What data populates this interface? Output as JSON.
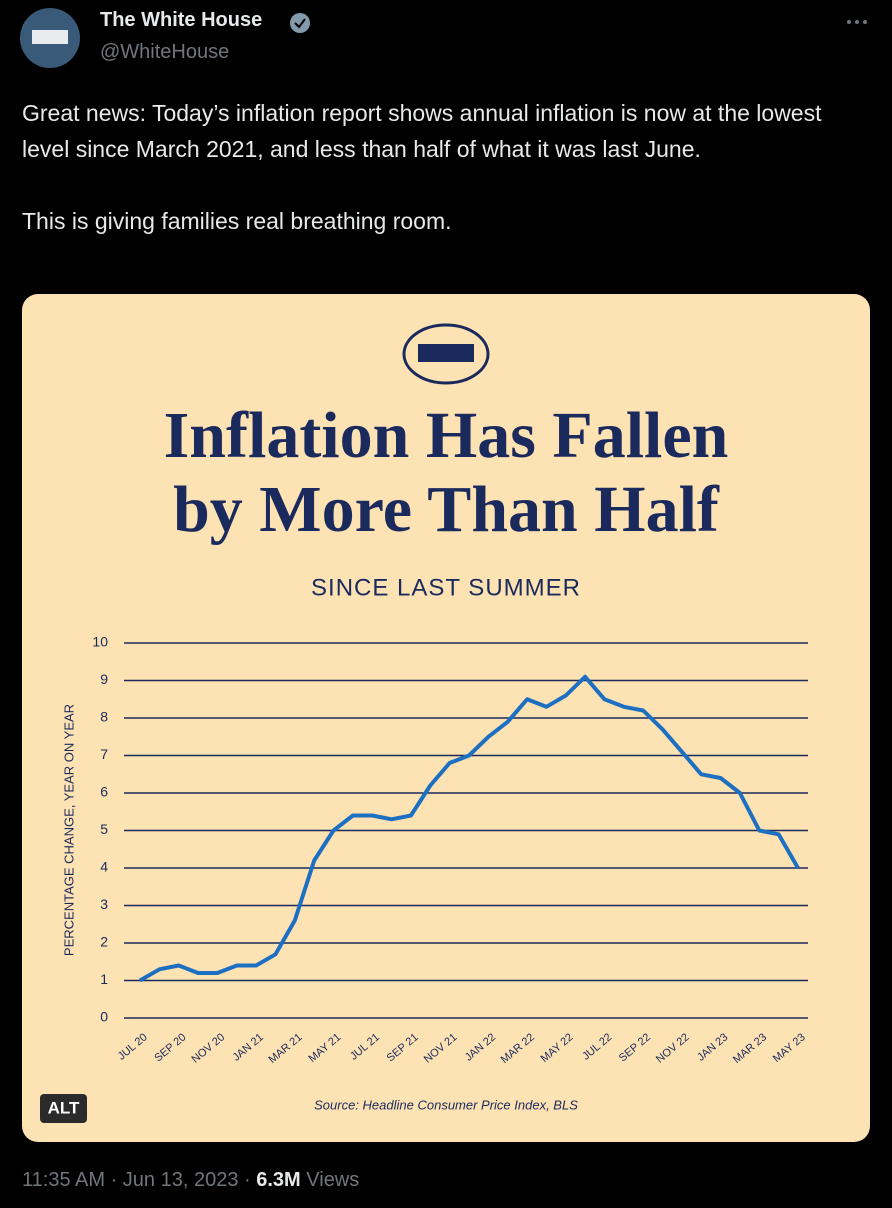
{
  "author": {
    "name": "The White House",
    "handle": "@WhiteHouse"
  },
  "tweet": {
    "paragraphs": [
      "Great news: Today’s inflation report shows annual inflation is now at the lowest level since March 2021, and less than half of what it was last June.",
      "This is giving families real breathing room."
    ]
  },
  "media": {
    "alt_badge": "ALT"
  },
  "footer": {
    "timestamp": "11:35 AM · Jun 13, 2023 ·",
    "views_count": "6.3M",
    "views_label": "Views"
  },
  "chart_data": {
    "type": "line",
    "title": [
      "Inflation Has Fallen",
      "by More Than Half"
    ],
    "subtitle": "SINCE LAST SUMMER",
    "y_label": "PERCENTAGE CHANGE, YEAR ON YEAR",
    "source": "Source: Headline Consumer Price Index, BLS",
    "categories": [
      "JUL 20",
      null,
      "SEP 20",
      null,
      "NOV 20",
      null,
      "JAN 21",
      null,
      "MAR 21",
      null,
      "MAY 21",
      null,
      "JUL 21",
      null,
      "SEP 21",
      null,
      "NOV 21",
      null,
      "JAN 22",
      null,
      "MAR 22",
      null,
      "MAY 22",
      null,
      "JUL 22",
      null,
      "SEP 22",
      null,
      "NOV 22",
      null,
      "JAN 23",
      null,
      "MAR 23",
      null,
      "MAY 23"
    ],
    "series": [
      {
        "name": "Headline CPI",
        "color": "#1d6fc2",
        "values": [
          1.0,
          1.3,
          1.4,
          1.2,
          1.2,
          1.4,
          1.4,
          1.7,
          2.6,
          4.2,
          5.0,
          5.4,
          5.4,
          5.3,
          5.4,
          6.2,
          6.8,
          7.0,
          7.5,
          7.9,
          8.5,
          8.3,
          8.6,
          9.1,
          8.5,
          8.3,
          8.2,
          7.7,
          7.1,
          6.5,
          6.4,
          6.0,
          5.0,
          4.9,
          4.0
        ]
      }
    ],
    "ylim": [
      0,
      10
    ],
    "yticks": [
      0,
      1,
      2,
      3,
      4,
      5,
      6,
      7,
      8,
      9,
      10
    ],
    "grid": true
  }
}
